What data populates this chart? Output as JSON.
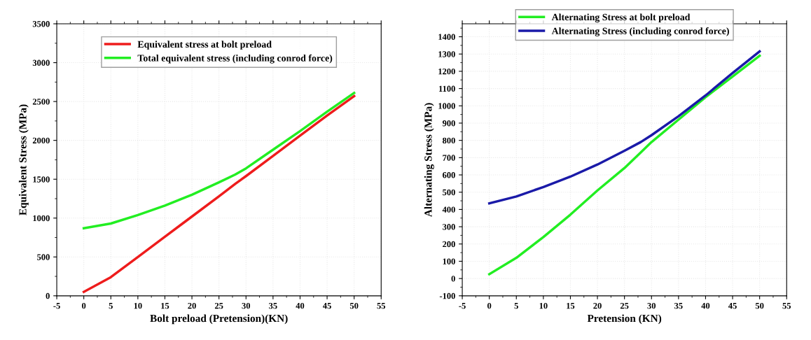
{
  "chart_data": [
    {
      "type": "line",
      "xlabel": "Bolt preload (Pretension)(KN)",
      "ylabel": "Equivalent Stress (MPa)",
      "xlim": [
        -5,
        55
      ],
      "xticks": [
        -5,
        0,
        5,
        10,
        15,
        20,
        25,
        30,
        35,
        40,
        45,
        50,
        55
      ],
      "ylim": [
        0,
        3500
      ],
      "yticks": [
        0,
        500,
        1000,
        1500,
        2000,
        2500,
        3000,
        3500
      ],
      "grid": true,
      "legend": "top",
      "marker": "none",
      "line_style": "solid",
      "x": [
        0,
        5,
        10,
        15,
        20,
        25,
        28,
        30,
        35,
        40,
        45,
        50
      ],
      "series": [
        {
          "name": "Equivalent stress at bolt preload",
          "color": "#ee1c1c",
          "values": [
            50,
            240,
            500,
            760,
            1020,
            1280,
            1440,
            1540,
            1800,
            2060,
            2320,
            2570
          ]
        },
        {
          "name": "Total equivalent stress (including conrod force)",
          "color": "#22ee22",
          "values": [
            870,
            930,
            1040,
            1160,
            1300,
            1460,
            1560,
            1640,
            1880,
            2120,
            2370,
            2610
          ]
        }
      ]
    },
    {
      "type": "line",
      "xlabel": "Pretension (KN)",
      "ylabel": "Alternating Stress (MPa)",
      "xlim": [
        -5,
        55
      ],
      "xticks": [
        -5,
        0,
        5,
        10,
        15,
        20,
        25,
        30,
        35,
        40,
        45,
        50,
        55
      ],
      "ylim": [
        -100,
        1475
      ],
      "yticks": [
        -100,
        0,
        100,
        200,
        300,
        400,
        500,
        600,
        700,
        800,
        900,
        1000,
        1100,
        1200,
        1300,
        1400
      ],
      "grid": true,
      "legend": "top",
      "marker": "none",
      "line_style": "solid",
      "x": [
        0,
        5,
        10,
        15,
        20,
        25,
        28,
        30,
        35,
        40,
        45,
        50
      ],
      "series": [
        {
          "name": "Alternating Stress at bolt preload",
          "color": "#22ee22",
          "values": [
            25,
            120,
            240,
            370,
            510,
            640,
            730,
            790,
            920,
            1050,
            1170,
            1290
          ]
        },
        {
          "name": "Alternating Stress (including conrod force)",
          "color": "#1a1aa8",
          "values": [
            435,
            475,
            530,
            590,
            660,
            740,
            790,
            830,
            940,
            1060,
            1190,
            1315
          ]
        }
      ]
    }
  ]
}
